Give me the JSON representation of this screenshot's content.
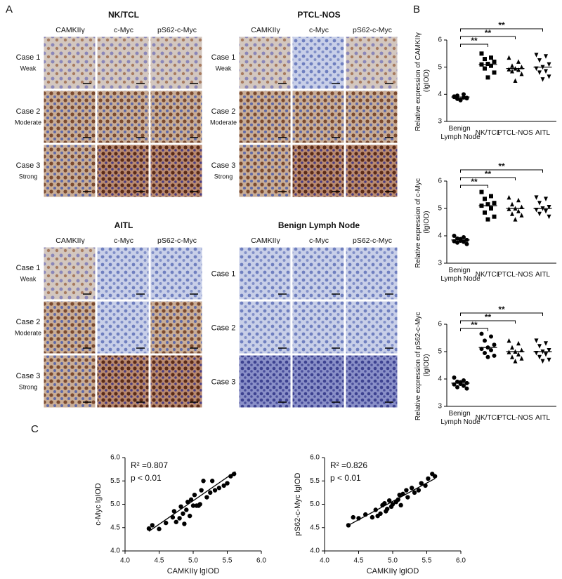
{
  "panel_labels": [
    "A",
    "B",
    "C"
  ],
  "panel_a": [
    {
      "title": "NK/TCL",
      "columns": [
        "CAMKIIγ",
        "c-Myc",
        "pS62-c-Myc"
      ],
      "rows": [
        {
          "case": "Case 1",
          "grade": "Weak"
        },
        {
          "case": "Case 2",
          "grade": "Moderate"
        },
        {
          "case": "Case 3",
          "grade": "Strong"
        }
      ]
    },
    {
      "title": "PTCL-NOS",
      "columns": [
        "CAMKIIγ",
        "c-Myc",
        "pS62-c-Myc"
      ],
      "rows": [
        {
          "case": "Case 1",
          "grade": "Weak"
        },
        {
          "case": "Case 2",
          "grade": "Moderate"
        },
        {
          "case": "Case 3",
          "grade": "Strong"
        }
      ]
    },
    {
      "title": "AITL",
      "columns": [
        "CAMKIIγ",
        "c-Myc",
        "pS62-c-Myc"
      ],
      "rows": [
        {
          "case": "Case 1",
          "grade": "Weak"
        },
        {
          "case": "Case 2",
          "grade": "Moderate"
        },
        {
          "case": "Case 3",
          "grade": "Strong"
        }
      ]
    },
    {
      "title": "Benign Lymph Node",
      "columns": [
        "CAMKIIγ",
        "c-Myc",
        "pS62-c-Myc"
      ],
      "rows": [
        {
          "case": "Case 1"
        },
        {
          "case": "Case 2"
        },
        {
          "case": "Case 3"
        }
      ]
    }
  ],
  "chart_data": [
    {
      "type": "strip",
      "ylabel": "Relative expression of CAMKIIγ (lgIOD)",
      "categories": [
        "Benign Lymph Node",
        "NK/TCL",
        "PTCL-NOS",
        "AITL"
      ],
      "markers": [
        "circle",
        "square",
        "triangle",
        "triangle-down"
      ],
      "color": "#000000",
      "values": [
        [
          3.92,
          3.88,
          3.95,
          3.85,
          3.8,
          3.9,
          4.0,
          3.83,
          3.87,
          3.78
        ],
        [
          5.5,
          5.35,
          5.3,
          5.2,
          5.12,
          5.1,
          5.05,
          4.95,
          4.8,
          4.62
        ],
        [
          5.35,
          5.2,
          5.05,
          5.0,
          4.95,
          4.92,
          4.9,
          4.85,
          4.75,
          4.5
        ],
        [
          5.45,
          5.4,
          5.25,
          5.1,
          5.0,
          4.95,
          4.85,
          4.8,
          4.65,
          4.55
        ]
      ],
      "medians": [
        3.9,
        5.1,
        4.95,
        5.0
      ],
      "significance": [
        "**",
        "**",
        "**"
      ],
      "ylim": [
        3,
        6
      ],
      "yticks": [
        3,
        4,
        5,
        6
      ]
    },
    {
      "type": "strip",
      "ylabel": "Relative expression of c-Myc (lgIOD)",
      "categories": [
        "Benign Lymph Node",
        "NK/TCL",
        "PTCL-NOS",
        "AITL"
      ],
      "markers": [
        "circle",
        "square",
        "triangle",
        "triangle-down"
      ],
      "color": "#000000",
      "values": [
        [
          4.0,
          3.95,
          3.9,
          3.85,
          3.82,
          3.8,
          3.78,
          3.75,
          3.7,
          3.88
        ],
        [
          5.6,
          5.45,
          5.35,
          5.2,
          5.15,
          5.1,
          5.0,
          4.85,
          4.7,
          4.6
        ],
        [
          5.4,
          5.3,
          5.15,
          5.05,
          5.0,
          4.98,
          4.9,
          4.8,
          4.75,
          4.6
        ],
        [
          5.4,
          5.35,
          5.2,
          5.05,
          5.0,
          4.95,
          4.9,
          4.8,
          4.7
        ]
      ],
      "medians": [
        3.85,
        5.1,
        5.0,
        5.0
      ],
      "significance": [
        "**",
        "**",
        "**"
      ],
      "ylim": [
        3,
        6
      ],
      "yticks": [
        3,
        4,
        5,
        6
      ]
    },
    {
      "type": "strip",
      "ylabel": "Relative expression of pS62-c-Myc (lgIOD)",
      "categories": [
        "Benign Lymph Node",
        "NK/TCL",
        "PTCL-NOS",
        "AITL"
      ],
      "markers": [
        "circle",
        "circle",
        "triangle",
        "triangle-down"
      ],
      "color": "#000000",
      "values": [
        [
          4.05,
          3.95,
          3.9,
          3.85,
          3.82,
          3.8,
          3.75,
          3.7,
          3.65,
          3.88
        ],
        [
          5.65,
          5.55,
          5.4,
          5.25,
          5.15,
          5.1,
          5.05,
          4.95,
          4.85,
          4.8
        ],
        [
          5.4,
          5.3,
          5.15,
          5.05,
          5.0,
          4.98,
          4.9,
          4.8,
          4.75,
          4.65
        ],
        [
          5.4,
          5.3,
          5.2,
          5.05,
          5.0,
          4.95,
          4.9,
          4.8,
          4.7,
          4.65
        ]
      ],
      "medians": [
        3.85,
        5.15,
        5.0,
        5.0
      ],
      "significance": [
        "**",
        "**",
        "**"
      ],
      "ylim": [
        3,
        6
      ],
      "yticks": [
        3,
        4,
        5,
        6
      ]
    },
    {
      "type": "scatter",
      "xlabel": "CAMKIIγ lgIOD",
      "ylabel": "c-Myc lgIOD",
      "annotations": [
        "R² =0.807",
        "p < 0.01"
      ],
      "color": "#000000",
      "x": [
        4.35,
        4.4,
        4.5,
        4.6,
        4.7,
        4.72,
        4.75,
        4.8,
        4.82,
        4.85,
        4.87,
        4.9,
        4.92,
        4.95,
        4.97,
        5.0,
        5.02,
        5.05,
        5.08,
        5.1,
        5.12,
        5.15,
        5.2,
        5.25,
        5.28,
        5.32,
        5.38,
        5.45,
        5.5,
        5.55,
        5.6
      ],
      "y": [
        4.48,
        4.55,
        4.47,
        4.6,
        4.72,
        4.85,
        4.62,
        4.7,
        4.95,
        4.8,
        4.58,
        4.88,
        5.05,
        4.75,
        5.1,
        4.97,
        5.2,
        4.97,
        4.97,
        5.0,
        5.3,
        5.5,
        5.15,
        5.25,
        5.5,
        5.3,
        5.35,
        5.4,
        5.45,
        5.6,
        5.65
      ],
      "fit_line": {
        "x": [
          4.35,
          5.62
        ],
        "y": [
          4.42,
          5.7
        ]
      },
      "xlim": [
        4,
        6
      ],
      "ylim": [
        4,
        6
      ],
      "xticks": [
        {
          "value": 4,
          "label": "4.0"
        },
        4.5,
        {
          "value": 5,
          "label": "5.0"
        },
        5.5,
        {
          "value": 6,
          "label": "6.0"
        }
      ],
      "yticks": [
        {
          "value": 4,
          "label": "4.0"
        },
        4.5,
        {
          "value": 5,
          "label": "5.0"
        },
        5.5,
        {
          "value": 6,
          "label": "6.0"
        }
      ]
    },
    {
      "type": "scatter",
      "xlabel": "CAMKIIγ lgIOD",
      "ylabel": "pS62-c-Myc lgIOD",
      "annotations": [
        "R² =0.826",
        "p < 0.01"
      ],
      "color": "#000000",
      "x": [
        4.35,
        4.42,
        4.5,
        4.6,
        4.7,
        4.75,
        4.78,
        4.82,
        4.85,
        4.88,
        4.9,
        4.92,
        4.95,
        4.98,
        5.0,
        5.05,
        5.08,
        5.1,
        5.12,
        5.15,
        5.2,
        5.22,
        5.28,
        5.32,
        5.38,
        5.42,
        5.48,
        5.52,
        5.58,
        5.62
      ],
      "y": [
        4.55,
        4.72,
        4.7,
        4.78,
        4.72,
        4.88,
        4.75,
        4.8,
        4.98,
        5.02,
        4.85,
        4.9,
        5.08,
        4.95,
        5.0,
        5.05,
        5.1,
        5.2,
        4.98,
        5.22,
        5.3,
        5.15,
        5.35,
        5.25,
        5.3,
        5.45,
        5.4,
        5.55,
        5.65,
        5.6
      ],
      "fit_line": {
        "x": [
          4.35,
          5.62
        ],
        "y": [
          4.55,
          5.55
        ]
      },
      "xlim": [
        4,
        6
      ],
      "ylim": [
        4,
        6
      ],
      "xticks": [
        {
          "value": 4,
          "label": "4.0"
        },
        4.5,
        {
          "value": 5,
          "label": "5.0"
        },
        5.5,
        {
          "value": 6,
          "label": "6.0"
        }
      ],
      "yticks": [
        {
          "value": 4,
          "label": "4.0"
        },
        4.5,
        {
          "value": 5,
          "label": "5.0"
        },
        5.5,
        {
          "value": 6,
          "label": "6.0"
        }
      ]
    }
  ]
}
